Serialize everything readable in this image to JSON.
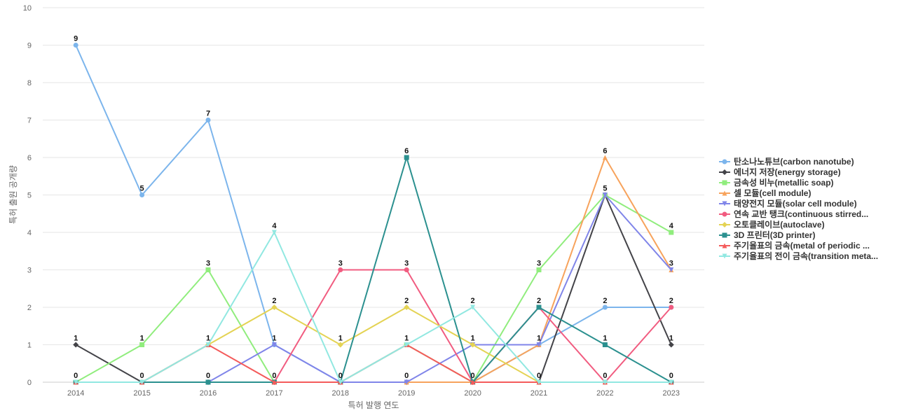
{
  "chart_data": {
    "type": "line",
    "xlabel": "특허 발행 연도",
    "ylabel": "특허 출원 공개량",
    "categories": [
      "2014",
      "2015",
      "2016",
      "2017",
      "2018",
      "2019",
      "2020",
      "2021",
      "2022",
      "2023"
    ],
    "ylim": [
      0,
      10
    ],
    "yticks": [
      0,
      1,
      2,
      3,
      4,
      5,
      6,
      7,
      8,
      9,
      10
    ],
    "grid": true,
    "legend_position": "right",
    "series": [
      {
        "name": "탄소나노튜브(carbon nanotube)",
        "color": "#7cb5ec",
        "marker": "circle",
        "values": [
          9,
          5,
          7,
          1,
          0,
          0,
          0,
          1,
          2,
          2
        ]
      },
      {
        "name": "에너지 저장(energy storage)",
        "color": "#434348",
        "marker": "diamond",
        "values": [
          1,
          0,
          0,
          0,
          0,
          0,
          0,
          0,
          5,
          1
        ]
      },
      {
        "name": "금속성 비누(metallic soap)",
        "color": "#90ed7d",
        "marker": "square",
        "values": [
          0,
          1,
          3,
          0,
          0,
          1,
          0,
          3,
          5,
          4
        ]
      },
      {
        "name": "셀 모듈(cell module)",
        "color": "#f7a35c",
        "marker": "triangle",
        "values": [
          0,
          0,
          0,
          0,
          0,
          0,
          0,
          1,
          6,
          3
        ]
      },
      {
        "name": "태양전지 모듈(solar cell module)",
        "color": "#8085e9",
        "marker": "triangle-down",
        "values": [
          0,
          0,
          0,
          1,
          0,
          0,
          1,
          1,
          5,
          3
        ]
      },
      {
        "name": "연속 교반 탱크(continuous stirred...",
        "color": "#f15c80",
        "marker": "circle",
        "values": [
          0,
          0,
          0,
          0,
          3,
          3,
          0,
          2,
          0,
          2
        ]
      },
      {
        "name": "오토클레이브(autoclave)",
        "color": "#e4d354",
        "marker": "diamond",
        "values": [
          0,
          0,
          1,
          2,
          1,
          2,
          1,
          0,
          0,
          0
        ]
      },
      {
        "name": "3D 프린터(3D printer)",
        "color": "#2b908f",
        "marker": "square",
        "values": [
          0,
          0,
          0,
          0,
          0,
          6,
          0,
          2,
          1,
          0
        ]
      },
      {
        "name": "주기율표의 금속(metal of periodic ...",
        "color": "#f45b5b",
        "marker": "triangle",
        "values": [
          0,
          0,
          1,
          0,
          0,
          1,
          0,
          0,
          0,
          0
        ]
      },
      {
        "name": "주기율표의 전이 금속(transition meta...",
        "color": "#91e8e1",
        "marker": "triangle-down",
        "values": [
          0,
          0,
          1,
          4,
          0,
          1,
          2,
          0,
          0,
          0
        ]
      }
    ],
    "data_labels": [
      {
        "x": "2014",
        "y": 9,
        "text": "9"
      },
      {
        "x": "2014",
        "y": 1,
        "text": "1"
      },
      {
        "x": "2014",
        "y": 0,
        "text": "0"
      },
      {
        "x": "2015",
        "y": 5,
        "text": "5"
      },
      {
        "x": "2015",
        "y": 1,
        "text": "1"
      },
      {
        "x": "2015",
        "y": 0,
        "text": "0"
      },
      {
        "x": "2016",
        "y": 7,
        "text": "7"
      },
      {
        "x": "2016",
        "y": 3,
        "text": "3"
      },
      {
        "x": "2016",
        "y": 1,
        "text": "1"
      },
      {
        "x": "2016",
        "y": 0,
        "text": "0"
      },
      {
        "x": "2017",
        "y": 4,
        "text": "4"
      },
      {
        "x": "2017",
        "y": 2,
        "text": "2"
      },
      {
        "x": "2017",
        "y": 1,
        "text": "1"
      },
      {
        "x": "2017",
        "y": 0,
        "text": "0"
      },
      {
        "x": "2018",
        "y": 3,
        "text": "3"
      },
      {
        "x": "2018",
        "y": 1,
        "text": "1"
      },
      {
        "x": "2018",
        "y": 0,
        "text": "0"
      },
      {
        "x": "2019",
        "y": 6,
        "text": "6"
      },
      {
        "x": "2019",
        "y": 3,
        "text": "3"
      },
      {
        "x": "2019",
        "y": 2,
        "text": "2"
      },
      {
        "x": "2019",
        "y": 1,
        "text": "1"
      },
      {
        "x": "2019",
        "y": 0,
        "text": "0"
      },
      {
        "x": "2020",
        "y": 2,
        "text": "2"
      },
      {
        "x": "2020",
        "y": 1,
        "text": "1"
      },
      {
        "x": "2020",
        "y": 0,
        "text": "0"
      },
      {
        "x": "2021",
        "y": 3,
        "text": "3"
      },
      {
        "x": "2021",
        "y": 2,
        "text": "2"
      },
      {
        "x": "2021",
        "y": 1,
        "text": "1"
      },
      {
        "x": "2021",
        "y": 0,
        "text": "0"
      },
      {
        "x": "2022",
        "y": 6,
        "text": "6"
      },
      {
        "x": "2022",
        "y": 5,
        "text": "5"
      },
      {
        "x": "2022",
        "y": 2,
        "text": "2"
      },
      {
        "x": "2022",
        "y": 1,
        "text": "1"
      },
      {
        "x": "2022",
        "y": 0,
        "text": "0"
      },
      {
        "x": "2023",
        "y": 4,
        "text": "4"
      },
      {
        "x": "2023",
        "y": 3,
        "text": "3"
      },
      {
        "x": "2023",
        "y": 2,
        "text": "2"
      },
      {
        "x": "2023",
        "y": 1,
        "text": "1"
      },
      {
        "x": "2023",
        "y": 0,
        "text": "0"
      }
    ]
  }
}
